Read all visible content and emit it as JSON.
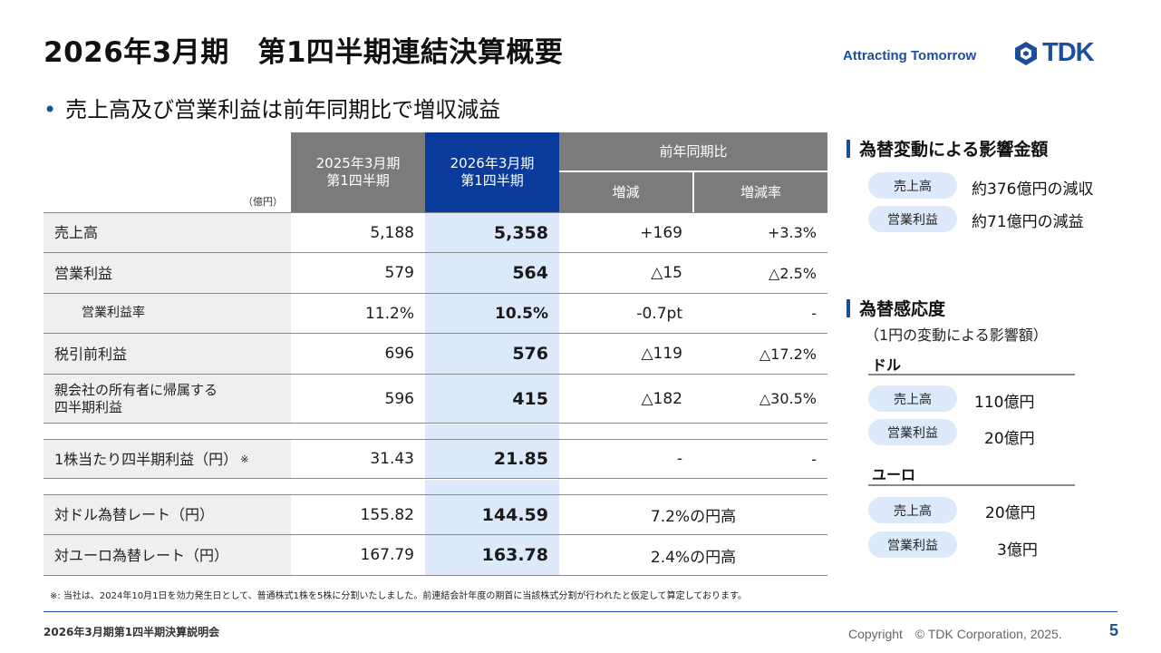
{
  "slide": {
    "title": "2026年3月期　第1四半期連結決算概要",
    "tagline": "Attracting Tomorrow",
    "logo_text": "TDK",
    "bullet": "売上高及び営業利益は前年同期比で増収減益"
  },
  "table": {
    "unit": "（億円）",
    "col1_header": [
      "2025年3月期",
      "第1四半期"
    ],
    "col2_header": [
      "2026年3月期",
      "第1四半期"
    ],
    "yoy_header": "前年同期比",
    "yoy_diff_header": "増減",
    "yoy_rate_header": "増減率",
    "rows": [
      {
        "label": "売上高",
        "prev": "5,188",
        "curr": "5,358",
        "diff": "+169",
        "rate": "+3.3%"
      },
      {
        "label": "営業利益",
        "prev": "579",
        "curr": "564",
        "diff": "△15",
        "rate": "△2.5%"
      },
      {
        "label": "営業利益率",
        "prev": "11.2%",
        "curr": "10.5%",
        "diff": "-0.7pt",
        "rate": "-"
      },
      {
        "label": "税引前利益",
        "prev": "696",
        "curr": "576",
        "diff": "△119",
        "rate": "△17.2%"
      },
      {
        "label_line1": "親会社の所有者に帰属する",
        "label_line2": "四半期利益",
        "prev": "596",
        "curr": "415",
        "diff": "△182",
        "rate": "△30.5%"
      }
    ],
    "eps": {
      "label": "1株当たり四半期利益（円）",
      "mark": "※",
      "prev": "31.43",
      "curr": "21.85",
      "diff": "-",
      "rate": "-"
    },
    "fx": [
      {
        "label": "対ドル為替レート（円）",
        "prev": "155.82",
        "curr": "144.59",
        "change": "7.2%の円高"
      },
      {
        "label": "対ユーロ為替レート（円）",
        "prev": "167.79",
        "curr": "163.78",
        "change": "2.4%の円高"
      }
    ]
  },
  "footnote": "※: 当社は、2024年10月1日を効力発生日として、普通株式1株を5株に分割いたしました。前連結会計年度の期首に当該株式分割が行われたと仮定して算定しております。",
  "fx_impact": {
    "title": "為替変動による影響金額",
    "items": [
      {
        "label": "売上高",
        "value": "約376億円の減収"
      },
      {
        "label": "営業利益",
        "value": "約71億円の減益"
      }
    ]
  },
  "sensitivity": {
    "title": "為替感応度",
    "note": "（1円の変動による影響額）",
    "usd": {
      "head": "ドル",
      "items": [
        {
          "label": "売上高",
          "value": "110億円"
        },
        {
          "label": "営業利益",
          "value": "20億円"
        }
      ]
    },
    "eur": {
      "head": "ユーロ",
      "items": [
        {
          "label": "売上高",
          "value": "20億円"
        },
        {
          "label": "営業利益",
          "value": "3億円"
        }
      ]
    }
  },
  "footer": {
    "event": "2026年3月期第1四半期決算説明会",
    "copyright": "Copyright　© TDK Corporation, 2025.",
    "page": "5"
  },
  "colors": {
    "brand_blue": "#1d4e9e",
    "header_blue": "#0b3b9a",
    "header_gray": "#7b7b7b",
    "highlight_blue": "#dce9fa",
    "label_gray": "#efefef"
  }
}
